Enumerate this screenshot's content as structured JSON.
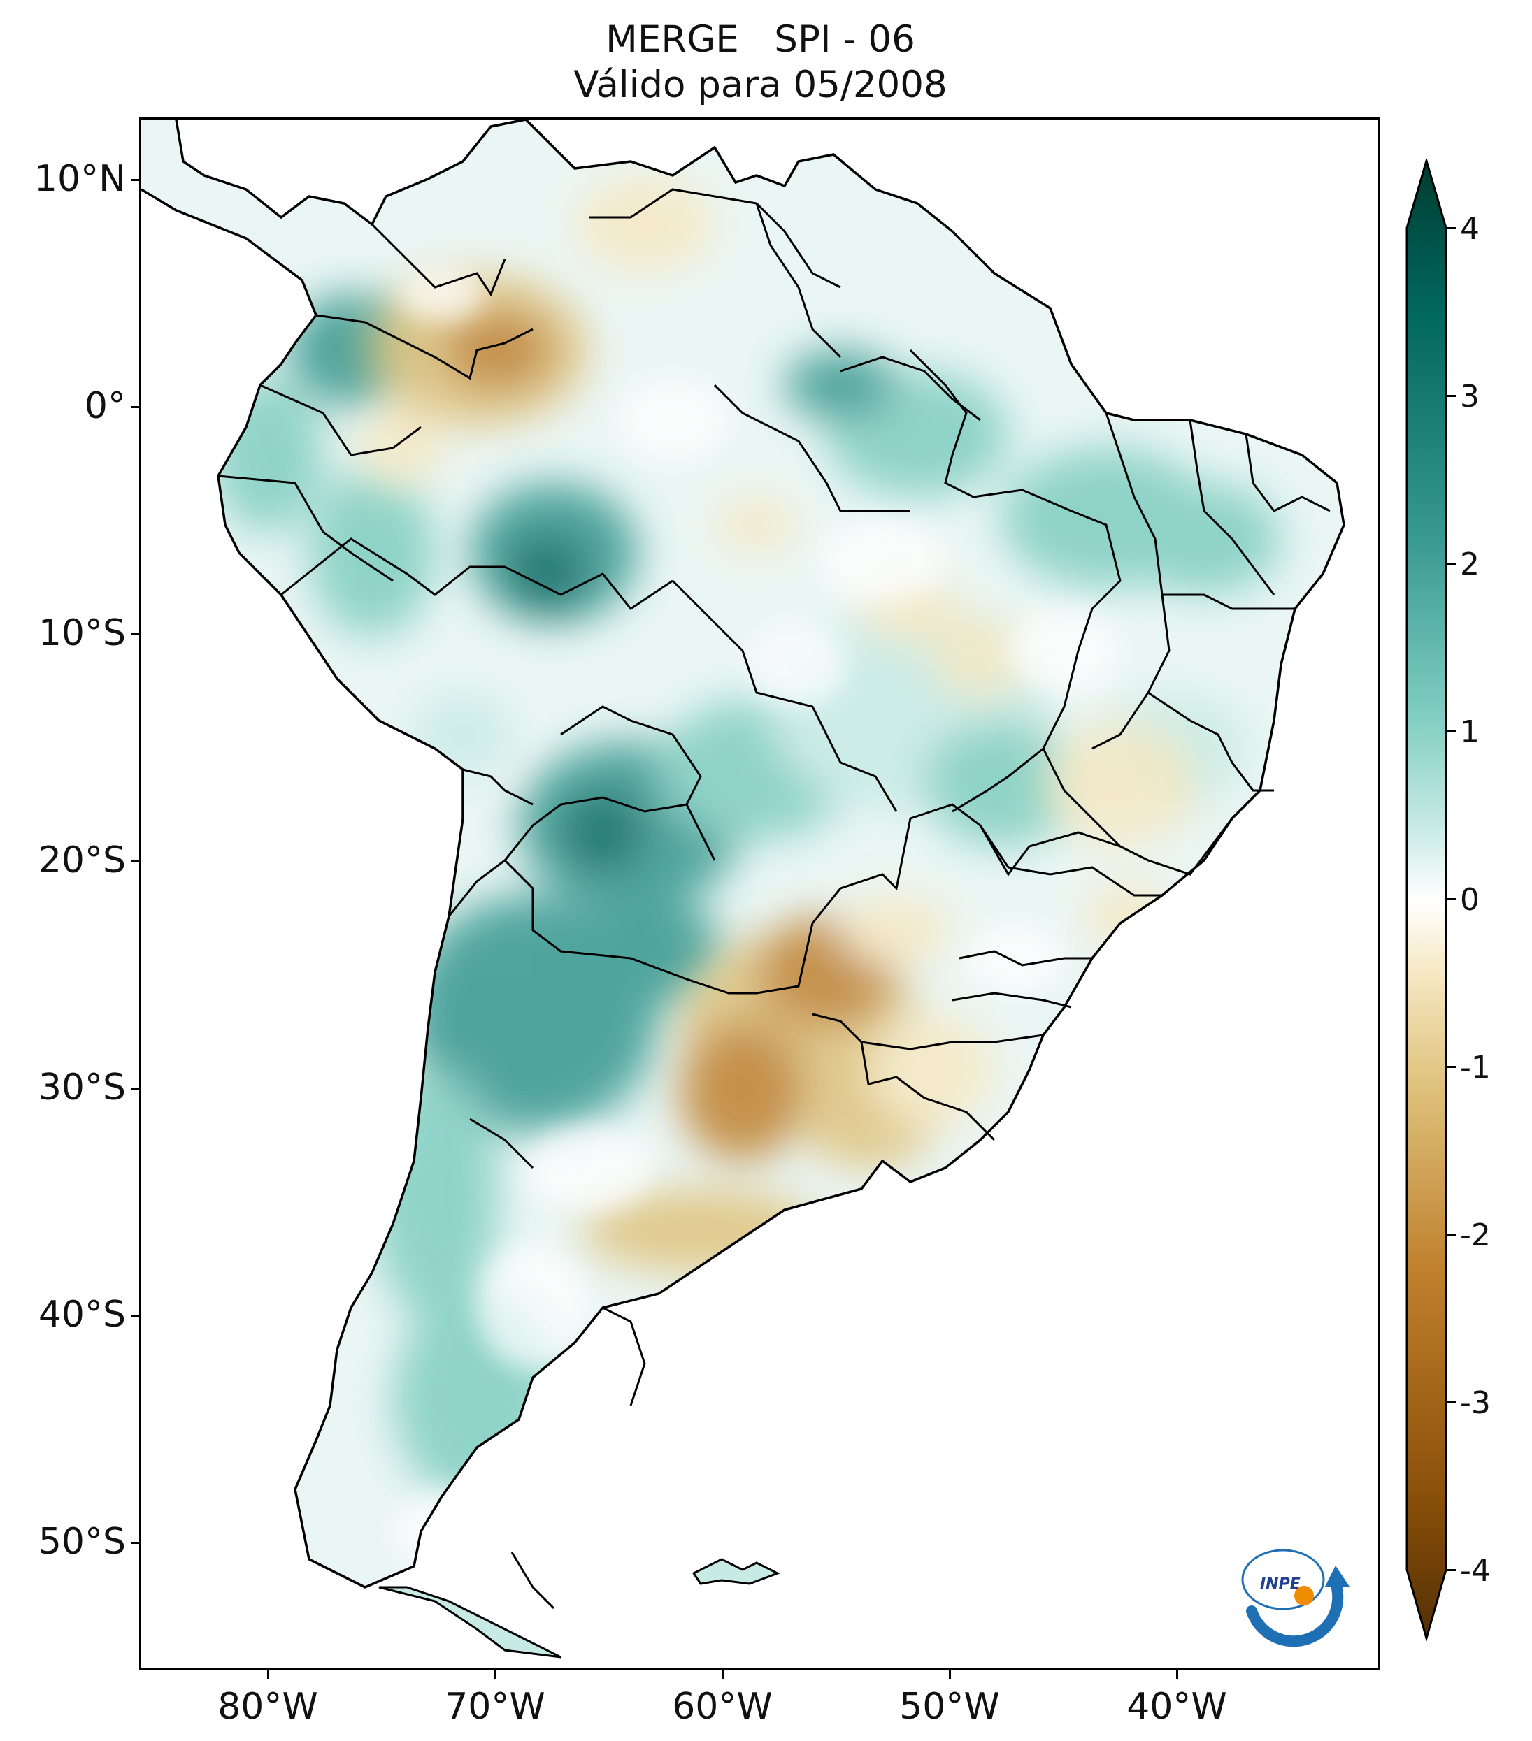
{
  "title": {
    "line1": "MERGE   SPI - 06",
    "line2": "Válido para 05/2008"
  },
  "axes": {
    "lat_labels": [
      "10°N",
      "0°",
      "10°S",
      "20°S",
      "30°S",
      "40°S",
      "50°S"
    ],
    "lon_labels": [
      "80°W",
      "70°W",
      "60°W",
      "50°W",
      "40°W"
    ]
  },
  "colorbar": {
    "tick_labels": [
      "4",
      "3",
      "2",
      "1",
      "0",
      "-1",
      "-2",
      "-3",
      "-4"
    ],
    "range": [
      -4,
      4
    ],
    "colors": [
      "#543005",
      "#8c510a",
      "#bf812d",
      "#dfc27d",
      "#f6e8c3",
      "#ffffff",
      "#c7eae5",
      "#80cdc1",
      "#35978f",
      "#01665e",
      "#003c30"
    ]
  },
  "logo": {
    "text": "INPE",
    "colors": {
      "ring": "#1f6fb5",
      "dot": "#f08c00"
    }
  },
  "map": {
    "variable": "SPI - 06",
    "dry_color": "#bf812d",
    "wet_color": "#35978f",
    "wet_strong_color": "#01665e"
  }
}
